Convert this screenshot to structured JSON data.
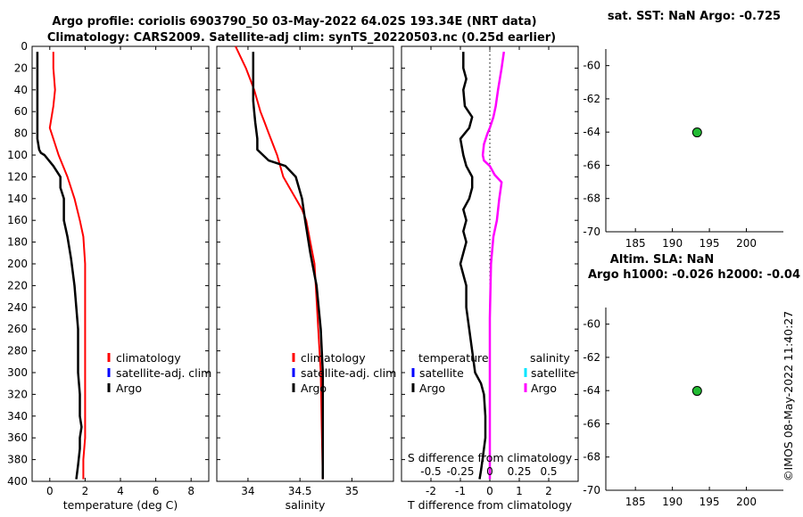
{
  "header": {
    "title_line1": "Argo profile: coriolis 6903790_50 03-May-2022 64.02S 193.34E (NRT data)",
    "title_line2": "Climatology: CARS2009. Satellite-adj clim: synTS_20220503.nc (0.25d earlier)"
  },
  "colors": {
    "climatology": "#ff0000",
    "satellite_adj": "#0000ff",
    "argo": "#000000",
    "satellite": "#00e5ff",
    "argo_salinity": "#ff00ff",
    "marker": "#22bb33"
  },
  "chart_data": [
    {
      "id": "temperature",
      "type": "line",
      "xlabel": "temperature (deg C)",
      "ylim": [
        400,
        0
      ],
      "xlim": [
        -1,
        9
      ],
      "xticks": [
        0,
        2,
        4,
        6,
        8
      ],
      "xtick_labels": [
        "0",
        "2",
        "4",
        "6",
        "8"
      ],
      "yticks": [
        0,
        20,
        40,
        60,
        80,
        100,
        120,
        140,
        160,
        180,
        200,
        220,
        240,
        260,
        280,
        300,
        320,
        340,
        360,
        380,
        400
      ],
      "ytick_labels": [
        "0",
        "20",
        "40",
        "60",
        "80",
        "100",
        "120",
        "140",
        "160",
        "180",
        "200",
        "220",
        "240",
        "260",
        "280",
        "300",
        "320",
        "340",
        "360",
        "380",
        "400"
      ],
      "legend": [
        "climatology",
        "satellite-adj. clim",
        "Argo"
      ],
      "series": [
        {
          "name": "climatology",
          "color": "#ff0000",
          "x": [
            0.2,
            0.2,
            0.3,
            0.2,
            0.1,
            0.0,
            0.1,
            0.5,
            1.0,
            1.4,
            1.7,
            1.9,
            2.0,
            2.0,
            2.0,
            2.0,
            2.0,
            1.9,
            1.9
          ],
          "y": [
            5,
            20,
            40,
            55,
            65,
            75,
            80,
            100,
            120,
            140,
            160,
            175,
            200,
            250,
            300,
            340,
            360,
            380,
            398
          ]
        },
        {
          "name": "Argo",
          "color": "#000000",
          "x": [
            -0.7,
            -0.7,
            -0.7,
            -0.6,
            -0.5,
            -0.3,
            0.2,
            0.6,
            0.6,
            0.8,
            0.8,
            1.0,
            1.2,
            1.4,
            1.6,
            1.6,
            1.7,
            1.7,
            1.8,
            1.7,
            1.7,
            1.6,
            1.5
          ],
          "y": [
            5,
            50,
            85,
            95,
            98,
            100,
            110,
            120,
            130,
            140,
            160,
            175,
            195,
            220,
            260,
            300,
            320,
            340,
            350,
            360,
            370,
            385,
            398
          ]
        }
      ]
    },
    {
      "id": "salinity",
      "type": "line",
      "xlabel": "salinity",
      "ylim": [
        400,
        0
      ],
      "xlim": [
        33.7,
        35.4
      ],
      "xticks": [
        34,
        34.5,
        35
      ],
      "xtick_labels": [
        "34",
        "34.5",
        "35"
      ],
      "legend": [
        "climatology",
        "satellite-adj. clim",
        "Argo"
      ],
      "series": [
        {
          "name": "climatology",
          "color": "#ff0000",
          "x": [
            33.88,
            33.93,
            33.98,
            34.02,
            34.06,
            34.09,
            34.12,
            34.16,
            34.2,
            34.28,
            34.34,
            34.4,
            34.46,
            34.52,
            34.56,
            34.6,
            34.64,
            34.67,
            34.7,
            34.71,
            34.72
          ],
          "y": [
            0,
            10,
            20,
            30,
            40,
            50,
            60,
            70,
            80,
            100,
            120,
            130,
            140,
            150,
            160,
            180,
            200,
            250,
            300,
            350,
            398
          ]
        },
        {
          "name": "Argo",
          "color": "#000000",
          "x": [
            34.05,
            34.05,
            34.06,
            34.07,
            34.09,
            34.09,
            34.2,
            34.36,
            34.46,
            34.52,
            34.55,
            34.6,
            34.66,
            34.7,
            34.72,
            34.72,
            34.72
          ],
          "y": [
            5,
            50,
            60,
            70,
            85,
            95,
            105,
            110,
            120,
            140,
            160,
            190,
            220,
            260,
            300,
            360,
            398
          ]
        }
      ]
    },
    {
      "id": "differences",
      "type": "line",
      "xlabel": "T difference from climatology",
      "xlabel_top": "S difference from climatology",
      "ylim": [
        400,
        0
      ],
      "xlim": [
        -3,
        3
      ],
      "xticks": [
        -2,
        -1,
        0,
        1,
        2
      ],
      "xtick_labels": [
        "-2",
        "-1",
        "0",
        "1",
        "2"
      ],
      "top_ticks": [
        -0.5,
        -0.25,
        0,
        0.25,
        0.5
      ],
      "top_tick_labels": [
        "-0.5",
        "-0.25",
        "0",
        "0.25",
        "0.5"
      ],
      "top_xlim": [
        -0.75,
        0.75
      ],
      "legend_temperature": [
        "temperature",
        "satellite",
        "Argo"
      ],
      "legend_salinity": [
        "salinity",
        "satellite",
        "Argo"
      ],
      "series": [
        {
          "name": "T diff Argo",
          "color": "#000000",
          "x": [
            -0.9,
            -0.9,
            -0.8,
            -0.9,
            -0.85,
            -0.6,
            -0.7,
            -1.0,
            -0.9,
            -0.8,
            -0.6,
            -0.6,
            -0.7,
            -0.9,
            -0.8,
            -0.9,
            -0.8,
            -0.9,
            -1.0,
            -0.8,
            -0.8,
            -0.7,
            -0.6,
            -0.5,
            -0.3,
            -0.2,
            -0.15,
            -0.15,
            -0.2,
            -0.25,
            -0.3,
            -0.35
          ],
          "y": [
            5,
            20,
            30,
            40,
            55,
            65,
            75,
            85,
            100,
            110,
            120,
            130,
            140,
            150,
            160,
            170,
            180,
            190,
            200,
            220,
            240,
            260,
            280,
            300,
            310,
            320,
            340,
            360,
            370,
            380,
            390,
            398
          ]
        },
        {
          "name": "S diff Argo",
          "color": "#ff00ff",
          "x": [
            0.12,
            0.1,
            0.07,
            0.05,
            0.03,
            0.0,
            -0.02,
            -0.05,
            -0.06,
            -0.05,
            0.0,
            0.04,
            0.1,
            0.08,
            0.06,
            0.03,
            0.01,
            0.0,
            0.0,
            0.0,
            0.0,
            0.0
          ],
          "y": [
            5,
            20,
            40,
            55,
            65,
            75,
            80,
            90,
            100,
            105,
            110,
            118,
            125,
            140,
            160,
            175,
            200,
            250,
            300,
            340,
            370,
            398
          ]
        }
      ]
    },
    {
      "id": "sst_map",
      "type": "scatter",
      "title": "sat. SST: NaN Argo: -0.725",
      "xlim": [
        181,
        205
      ],
      "ylim": [
        -70,
        -59
      ],
      "xticks": [
        185,
        190,
        195,
        200
      ],
      "xtick_labels": [
        "185",
        "190",
        "195",
        "200"
      ],
      "yticks": [
        -60,
        -62,
        -64,
        -66,
        -68,
        -70
      ],
      "ytick_labels": [
        "-60",
        "-62",
        "-64",
        "-66",
        "-68",
        "-70"
      ],
      "points": [
        {
          "x": 193.34,
          "y": -64.02
        }
      ]
    },
    {
      "id": "sla_map",
      "type": "scatter",
      "title_line1": "Altim. SLA: NaN",
      "title_line2": "Argo h1000: -0.026 h2000: -0.04",
      "xlim": [
        181,
        205
      ],
      "ylim": [
        -70,
        -59
      ],
      "xticks": [
        185,
        190,
        195,
        200
      ],
      "xtick_labels": [
        "185",
        "190",
        "195",
        "200"
      ],
      "yticks": [
        -60,
        -62,
        -64,
        -66,
        -68,
        -70
      ],
      "ytick_labels": [
        "-60",
        "-62",
        "-64",
        "-66",
        "-68",
        "-70"
      ],
      "points": [
        {
          "x": 193.34,
          "y": -64.02
        }
      ]
    }
  ],
  "footer": {
    "copyright": "©IMOS 08-May-2022 11:40:27"
  }
}
